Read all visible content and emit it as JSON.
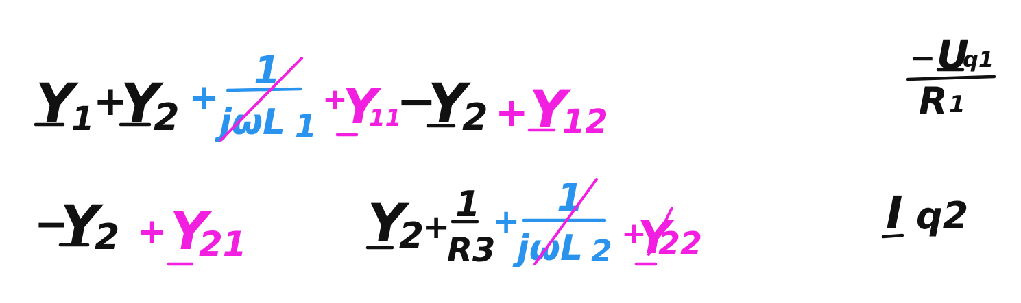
{
  "colors": {
    "black": "#111111",
    "blue": "#2a93ee",
    "magenta": "#f21fe0"
  },
  "row1": {
    "y1": "Y",
    "y1_sub": "1",
    "plus1": "+",
    "y2": "Y",
    "y2_sub": "2",
    "plus_blue": "+",
    "frac_num": "1",
    "frac_den": "jωL",
    "frac_den_sub": "1",
    "plus_mag1": "+",
    "y11": "Y",
    "y11_sub": "11",
    "minus": "−",
    "y2b": "Y",
    "y2b_sub": "2",
    "plus_mag2": "+",
    "y12": "Y",
    "y12_sub": "12"
  },
  "rhs1": {
    "num_sign": "−",
    "num_main": "U",
    "num_sub": "q1",
    "den_main": "R",
    "den_sub": "1"
  },
  "row2": {
    "minus": "−",
    "y2": "Y",
    "y2_sub": "2",
    "plus_mag1": "+",
    "y21": "Y",
    "y21_sub": "21",
    "y2b": "Y",
    "y2b_sub": "2",
    "plus1": "+",
    "r_num": "1",
    "r_den": "R3",
    "plus_blue": "+",
    "frac_num": "1",
    "frac_den": "jωL",
    "frac_den_sub": "2",
    "plus_mag2": "+",
    "y22": "Y",
    "y22_sub": "22"
  },
  "rhs2": {
    "main": "I",
    "sub": "q2"
  }
}
